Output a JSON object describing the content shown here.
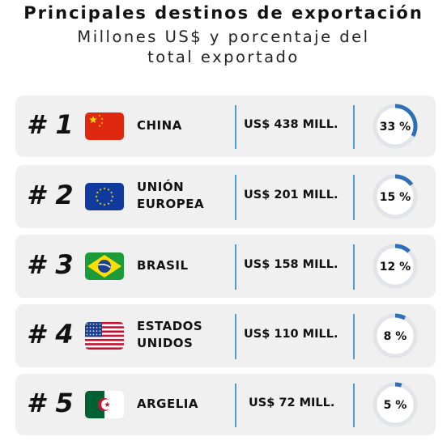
{
  "title": "Principales destinos de exportación",
  "subtitle": "Millones US$ y porcentaje del total exportado",
  "colors": {
    "card_bg": "#f0f0f0",
    "accent": "#2f6fb7",
    "divider": "#4a9fd6",
    "ring_track": "#e2e4ea"
  },
  "chart_data": {
    "type": "table",
    "title": "Principales destinos de exportación",
    "subtitle": "Millones US$ y porcentaje del total exportado",
    "unit": "Millones US$",
    "rows": [
      {
        "rank_label": "# 1",
        "country_lines": [
          "CHINA"
        ],
        "flag": "china-flag",
        "value": 438,
        "value_label": "US$ 438 MILL.",
        "percent": 33,
        "percent_label": "33 %"
      },
      {
        "rank_label": "# 2",
        "country_lines": [
          "UNIÓN",
          "EUROPEA"
        ],
        "flag": "eu-flag",
        "value": 201,
        "value_label": "US$ 201 MILL.",
        "percent": 15,
        "percent_label": "15 %"
      },
      {
        "rank_label": "# 3",
        "country_lines": [
          "BRASIL"
        ],
        "flag": "brazil-flag",
        "value": 158,
        "value_label": "US$ 158 MILL.",
        "percent": 12,
        "percent_label": "12 %"
      },
      {
        "rank_label": "# 4",
        "country_lines": [
          "ESTADOS",
          "UNIDOS"
        ],
        "flag": "usa-flag",
        "value": 110,
        "value_label": "US$ 110 MILL.",
        "percent": 8,
        "percent_label": "8 %"
      },
      {
        "rank_label": "# 5",
        "country_lines": [
          "ARGELIA"
        ],
        "flag": "algeria-flag",
        "value": 72,
        "value_label": "US$ 72 MILL.",
        "percent": 5,
        "percent_label": "5 %"
      }
    ]
  }
}
